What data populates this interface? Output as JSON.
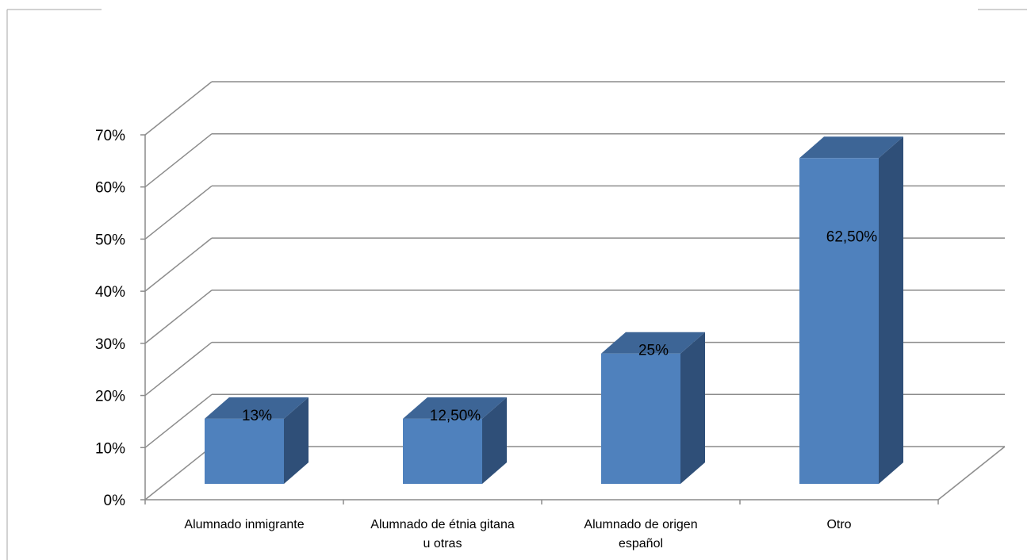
{
  "chart_data": {
    "type": "bar",
    "title": "",
    "xlabel": "",
    "ylabel": "",
    "ylim": [
      0,
      70
    ],
    "yticks": [
      "0%",
      "10%",
      "20%",
      "30%",
      "40%",
      "50%",
      "60%",
      "70%"
    ],
    "categories": [
      [
        "Alumnado inmigrante"
      ],
      [
        "Alumnado de étnia gitana",
        "u otras"
      ],
      [
        "Alumnado de origen",
        "español"
      ],
      [
        "Otro"
      ]
    ],
    "values": [
      12.5,
      12.5,
      25,
      62.5
    ],
    "data_labels": [
      "13%",
      "12,50%",
      "25%",
      "62,50%"
    ],
    "grid": true,
    "legend": "none",
    "colors": {
      "bar_front": "#4f81bd",
      "bar_top": "#3d6596",
      "bar_side": "#2f4f78",
      "gridline": "#8c8c8c"
    }
  }
}
